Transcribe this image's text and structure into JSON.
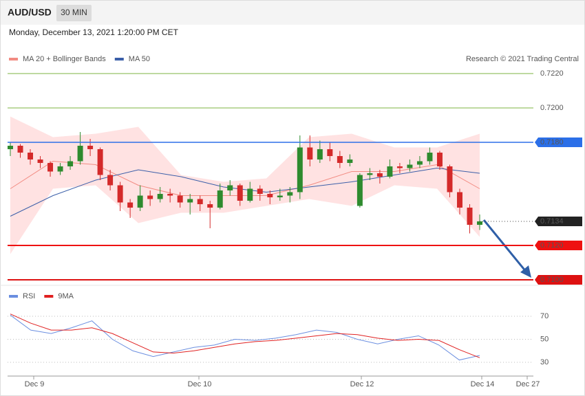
{
  "header": {
    "symbol": "AUD/USD",
    "timeframe": "30 MIN",
    "datetime": "Monday, December 13, 2021 1:20:00 PM CET"
  },
  "time_axis": {
    "labels": [
      "Dec 9",
      "Dec 10",
      "Dec 12",
      "Dec 14",
      "Dec 27"
    ]
  },
  "chart_data": [
    {
      "type": "candlestick",
      "credit": "Research © 2021 Trading Central",
      "up_color": "#2e8b2e",
      "down_color": "#d42a2a",
      "ylim": [
        0.7098,
        0.7235
      ],
      "levels": [
        {
          "value": 0.722,
          "label": "0.7220",
          "color": "#7cb342",
          "style": "line"
        },
        {
          "value": 0.72,
          "label": "0.7200",
          "color": "#7cb342",
          "style": "line"
        },
        {
          "value": 0.718,
          "label": "0.7180",
          "color": "#2b6fe8",
          "style": "box"
        },
        {
          "value": 0.7134,
          "label": "0.7134",
          "color": "#222222",
          "style": "last"
        },
        {
          "value": 0.712,
          "label": "0.7120",
          "color": "#ee1111",
          "style": "box"
        },
        {
          "value": 0.71,
          "label": "0.7100",
          "color": "#dd1111",
          "style": "box"
        }
      ],
      "series": [
        {
          "name": "MA 20 + Bollinger Bands",
          "color": "#f28b82",
          "values": [
            0.7153,
            0.7169,
            0.7167,
            0.7155,
            0.7149,
            0.7149,
            0.7149,
            0.7155,
            0.7163,
            0.7163,
            0.7167,
            0.7153
          ],
          "upper": [
            0.7195,
            0.7183,
            0.7185,
            0.7189,
            0.7161,
            0.7157,
            0.7159,
            0.7183,
            0.7185,
            0.7177,
            0.7177,
            0.7185
          ],
          "lower": [
            0.7115,
            0.7153,
            0.7155,
            0.7133,
            0.7139,
            0.7139,
            0.7143,
            0.7147,
            0.7143,
            0.7155,
            0.7153,
            0.7125
          ]
        },
        {
          "name": "MA 50",
          "color": "#3a5ea8",
          "values": [
            0.7137,
            0.7149,
            0.7158,
            0.7164,
            0.716,
            0.7154,
            0.7151,
            0.7154,
            0.7157,
            0.7161,
            0.7165,
            0.7162
          ]
        }
      ],
      "candles": [
        [
          0.7176,
          0.718,
          0.7172,
          0.7178
        ],
        [
          0.7178,
          0.7179,
          0.7171,
          0.7174
        ],
        [
          0.7174,
          0.7176,
          0.7167,
          0.717
        ],
        [
          0.717,
          0.7172,
          0.7165,
          0.7168
        ],
        [
          0.7168,
          0.7169,
          0.716,
          0.7163
        ],
        [
          0.7163,
          0.7168,
          0.7161,
          0.7166
        ],
        [
          0.7166,
          0.7172,
          0.7164,
          0.7169
        ],
        [
          0.7169,
          0.7186,
          0.7167,
          0.7178
        ],
        [
          0.7178,
          0.7182,
          0.7172,
          0.7176
        ],
        [
          0.7176,
          0.7177,
          0.7158,
          0.7161
        ],
        [
          0.7161,
          0.7164,
          0.7152,
          0.7155
        ],
        [
          0.7155,
          0.7157,
          0.714,
          0.7145
        ],
        [
          0.7145,
          0.7147,
          0.7136,
          0.7142
        ],
        [
          0.7142,
          0.7155,
          0.714,
          0.7149
        ],
        [
          0.7149,
          0.7152,
          0.7143,
          0.7147
        ],
        [
          0.7147,
          0.7154,
          0.7145,
          0.715
        ],
        [
          0.715,
          0.7153,
          0.7145,
          0.7149
        ],
        [
          0.7149,
          0.7151,
          0.7142,
          0.7145
        ],
        [
          0.7145,
          0.715,
          0.7138,
          0.7147
        ],
        [
          0.7147,
          0.7149,
          0.714,
          0.7144
        ],
        [
          0.7144,
          0.7146,
          0.713,
          0.7142
        ],
        [
          0.7142,
          0.7156,
          0.7141,
          0.7152
        ],
        [
          0.7152,
          0.7158,
          0.7149,
          0.7155
        ],
        [
          0.7155,
          0.7156,
          0.7143,
          0.7146
        ],
        [
          0.7146,
          0.7157,
          0.7145,
          0.7153
        ],
        [
          0.7153,
          0.7155,
          0.7146,
          0.715
        ],
        [
          0.715,
          0.7152,
          0.7144,
          0.7148
        ],
        [
          0.7148,
          0.7153,
          0.7146,
          0.7149
        ],
        [
          0.7149,
          0.7154,
          0.7145,
          0.7151
        ],
        [
          0.7151,
          0.7184,
          0.7147,
          0.7177
        ],
        [
          0.7177,
          0.7184,
          0.7166,
          0.717
        ],
        [
          0.717,
          0.7181,
          0.7168,
          0.7176
        ],
        [
          0.7176,
          0.718,
          0.7169,
          0.7172
        ],
        [
          0.7172,
          0.7175,
          0.7165,
          0.7168
        ],
        [
          0.7168,
          0.7173,
          0.7166,
          0.717
        ],
        [
          0.7143,
          0.7162,
          0.7142,
          0.7161
        ],
        [
          0.7161,
          0.7165,
          0.7158,
          0.7162
        ],
        [
          0.7162,
          0.7164,
          0.7156,
          0.716
        ],
        [
          0.716,
          0.717,
          0.7159,
          0.7166
        ],
        [
          0.7166,
          0.7168,
          0.7162,
          0.7165
        ],
        [
          0.7165,
          0.717,
          0.7163,
          0.7167
        ],
        [
          0.7167,
          0.7172,
          0.7165,
          0.7169
        ],
        [
          0.7169,
          0.7177,
          0.7167,
          0.7174
        ],
        [
          0.7174,
          0.7175,
          0.7164,
          0.7166
        ],
        [
          0.7166,
          0.7167,
          0.7148,
          0.7151
        ],
        [
          0.7151,
          0.7153,
          0.7138,
          0.7142
        ],
        [
          0.7142,
          0.7144,
          0.7127,
          0.7132
        ],
        [
          0.7132,
          0.7138,
          0.7129,
          0.7134
        ]
      ]
    },
    {
      "type": "line",
      "ylim": [
        20,
        80
      ],
      "yticks": [
        30,
        50,
        70
      ],
      "series": [
        {
          "name": "RSI",
          "color": "#6a8ee0",
          "values": [
            71,
            58,
            55,
            60,
            66,
            50,
            40,
            35,
            39,
            43,
            45,
            50,
            49,
            51,
            54,
            58,
            56,
            50,
            46,
            50,
            53,
            45,
            32,
            36
          ]
        },
        {
          "name": "9MA",
          "color": "#e02020",
          "values": [
            72,
            64,
            58,
            58,
            60,
            55,
            47,
            39,
            38,
            40,
            43,
            46,
            48,
            49,
            51,
            53,
            55,
            54,
            51,
            49,
            50,
            49,
            41,
            34
          ]
        }
      ]
    }
  ]
}
